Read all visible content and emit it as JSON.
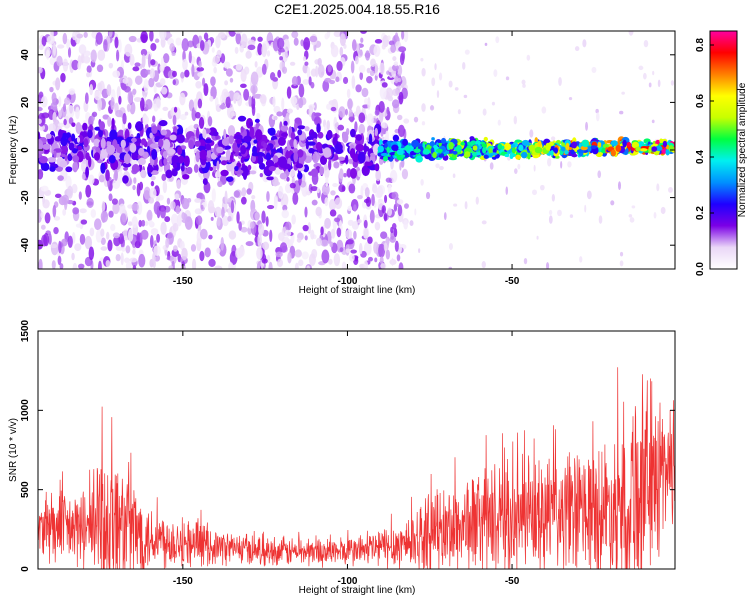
{
  "figure_title": "C2E1.2025.004.18.55.R16",
  "chart_data": [
    {
      "type": "heatmap",
      "xlabel": "Height of straight line (km)",
      "ylabel": "Frequency (Hz)",
      "xlim": [
        -194,
        -0.5
      ],
      "ylim": [
        -50,
        50
      ],
      "xticks": [
        -150,
        -100,
        -50
      ],
      "yticks": [
        -40,
        -20,
        0,
        20,
        40
      ],
      "colorbar": {
        "label": "Normalized spectral amplitude",
        "range": [
          0,
          0.85
        ],
        "ticks": [
          0.0,
          0.2,
          0.4,
          0.6,
          0.8
        ],
        "colormap": [
          "#ffffff",
          "#ead7f7",
          "#7b00e6",
          "#1f00ff",
          "#0090ff",
          "#00f0f0",
          "#00ff40",
          "#c8ff00",
          "#ffff00",
          "#ff7f00",
          "#ff0000",
          "#ff00a0"
        ]
      },
      "description_regions": [
        {
          "x_range": [
            -194,
            -90
          ],
          "freq_spread": [
            -50,
            50
          ],
          "amplitude": "scattered low (0.05-0.15)"
        },
        {
          "x_range": [
            -194,
            -90
          ],
          "freq_band": [
            -8,
            8
          ],
          "amplitude": "moderate (0.1-0.2)"
        },
        {
          "x_range": [
            -90,
            -0.5
          ],
          "freq_band": [
            -6,
            6
          ],
          "amplitude": "strong (0.2-0.85), increasing toward 0 km"
        }
      ],
      "grid": false
    },
    {
      "type": "line",
      "xlabel": "Height of straight line (km)",
      "ylabel": "SNR (10 * v/v)",
      "xlim": [
        -194,
        -0.5
      ],
      "ylim": [
        0,
        1500
      ],
      "xticks": [
        -150,
        -100,
        -50
      ],
      "yticks": [
        0,
        500,
        1000,
        1500
      ],
      "color": "#ee3333",
      "envelope_points": [
        {
          "x": -194,
          "mean": 250,
          "spread": 250
        },
        {
          "x": -180,
          "mean": 250,
          "spread": 300
        },
        {
          "x": -173,
          "mean": 300,
          "spread": 700
        },
        {
          "x": -160,
          "mean": 200,
          "spread": 250
        },
        {
          "x": -140,
          "mean": 140,
          "spread": 130
        },
        {
          "x": -120,
          "mean": 110,
          "spread": 110
        },
        {
          "x": -100,
          "mean": 110,
          "spread": 110
        },
        {
          "x": -85,
          "mean": 150,
          "spread": 180
        },
        {
          "x": -75,
          "mean": 220,
          "spread": 300
        },
        {
          "x": -60,
          "mean": 300,
          "spread": 400
        },
        {
          "x": -40,
          "mean": 320,
          "spread": 450
        },
        {
          "x": -20,
          "mean": 380,
          "spread": 550
        },
        {
          "x": -12,
          "mean": 500,
          "spread": 900
        },
        {
          "x": -0.5,
          "mean": 700,
          "spread": 450
        }
      ],
      "grid": false
    }
  ]
}
